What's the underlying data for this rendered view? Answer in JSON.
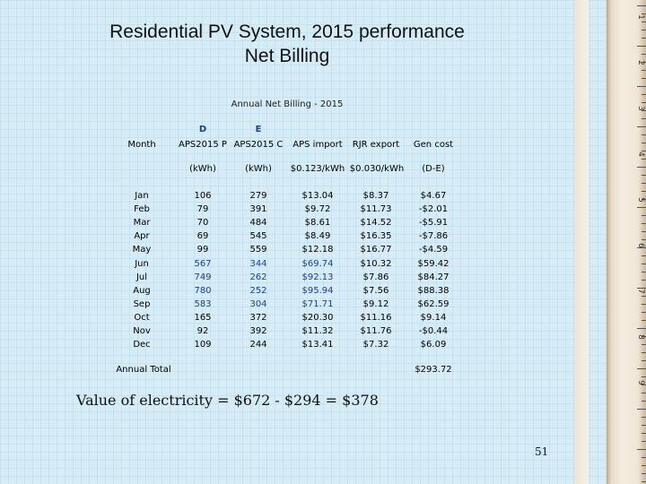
{
  "slide": {
    "title_line1": "Residential PV System, 2015 performance",
    "title_line2": "Net Billing",
    "page_number": "51"
  },
  "table": {
    "caption": "Annual Net Billing - 2015",
    "headers": {
      "month": "Month",
      "col_d_letter": "D",
      "col_d": "APS2015 P",
      "col_e_letter": "E",
      "col_e": "APS2015 C",
      "import": "APS import",
      "export": "RJR export",
      "gen_cost": "Gen cost"
    },
    "units": {
      "d": "(kWh)",
      "e": "(kWh)",
      "import": "$0.123/kWh",
      "export": "$0.030/kWh",
      "gen_cost": "(D-E)"
    },
    "rows": [
      {
        "month": "Jan",
        "d": "106",
        "e": "279",
        "imp": "$13.04",
        "exp": "$8.37",
        "gen": "$4.67"
      },
      {
        "month": "Feb",
        "d": "79",
        "e": "391",
        "imp": "$9.72",
        "exp": "$11.73",
        "gen": "-$2.01"
      },
      {
        "month": "Mar",
        "d": "70",
        "e": "484",
        "imp": "$8.61",
        "exp": "$14.52",
        "gen": "-$5.91"
      },
      {
        "month": "Apr",
        "d": "69",
        "e": "545",
        "imp": "$8.49",
        "exp": "$16.35",
        "gen": "-$7.86"
      },
      {
        "month": "May",
        "d": "99",
        "e": "559",
        "imp": "$12.18",
        "exp": "$16.77",
        "gen": "-$4.59"
      },
      {
        "month": "Jun",
        "d": "567",
        "e": "344",
        "imp": "$69.74",
        "exp": "$10.32",
        "gen": "$59.42"
      },
      {
        "month": "Jul",
        "d": "749",
        "e": "262",
        "imp": "$92.13",
        "exp": "$7.86",
        "gen": "$84.27"
      },
      {
        "month": "Aug",
        "d": "780",
        "e": "252",
        "imp": "$95.94",
        "exp": "$7.56",
        "gen": "$88.38"
      },
      {
        "month": "Sep",
        "d": "583",
        "e": "304",
        "imp": "$71.71",
        "exp": "$9.12",
        "gen": "$62.59"
      },
      {
        "month": "Oct",
        "d": "165",
        "e": "372",
        "imp": "$20.30",
        "exp": "$11.16",
        "gen": "$9.14"
      },
      {
        "month": "Nov",
        "d": "92",
        "e": "392",
        "imp": "$11.32",
        "exp": "$11.76",
        "gen": "-$0.44"
      },
      {
        "month": "Dec",
        "d": "109",
        "e": "244",
        "imp": "$13.41",
        "exp": "$7.32",
        "gen": "$6.09"
      }
    ],
    "total_label": "Annual Total",
    "total_value": "$293.72"
  },
  "summary": "Value of electricity = $672 - $294 = $378",
  "ruler_labels": [
    "1",
    "2",
    "3",
    "4",
    "5",
    "6",
    "7",
    "8",
    "9"
  ],
  "colors": {
    "background": "#d6ecf6",
    "blue_accent": "#1f3c9a",
    "ruler": "#efe6d6"
  }
}
